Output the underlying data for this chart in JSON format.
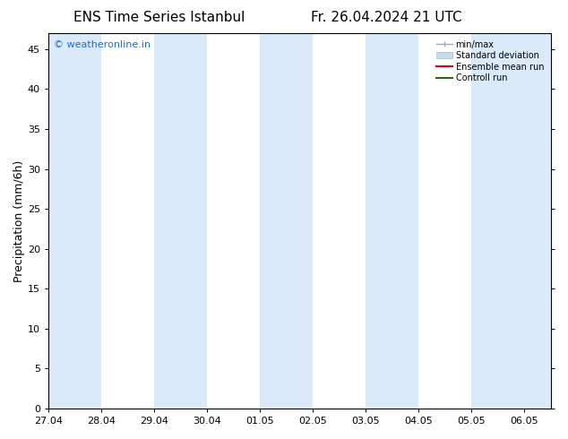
{
  "title": "ENS Time Series Istanbul",
  "title_right": "Fr. 26.04.2024 21 UTC",
  "ylabel": "Precipitation (mm/6h)",
  "xlabel_ticks": [
    "27.04",
    "28.04",
    "29.04",
    "30.04",
    "01.05",
    "02.05",
    "03.05",
    "04.05",
    "05.05",
    "06.05"
  ],
  "ylim": [
    0,
    47
  ],
  "yticks": [
    0,
    5,
    10,
    15,
    20,
    25,
    30,
    35,
    40,
    45
  ],
  "bg_color": "#ffffff",
  "plot_bg_color": "#ffffff",
  "shaded_band_color": "#daeaf8",
  "watermark_text": "© weatheronline.in",
  "watermark_color": "#1a6fd4",
  "font_family": "DejaVu Sans",
  "title_fontsize": 11,
  "tick_fontsize": 8,
  "ylabel_fontsize": 9,
  "legend_min_max_color": "#aaaaaa",
  "legend_std_color": "#c5ddf0",
  "legend_ens_color": "#dd0000",
  "legend_ctrl_color": "#336600",
  "shaded_regions": [
    [
      0.0,
      1.0
    ],
    [
      2.0,
      3.0
    ],
    [
      4.0,
      5.0
    ],
    [
      6.0,
      7.0
    ],
    [
      8.0,
      9.0
    ]
  ],
  "x_min": 0.0,
  "x_max": 9.5
}
